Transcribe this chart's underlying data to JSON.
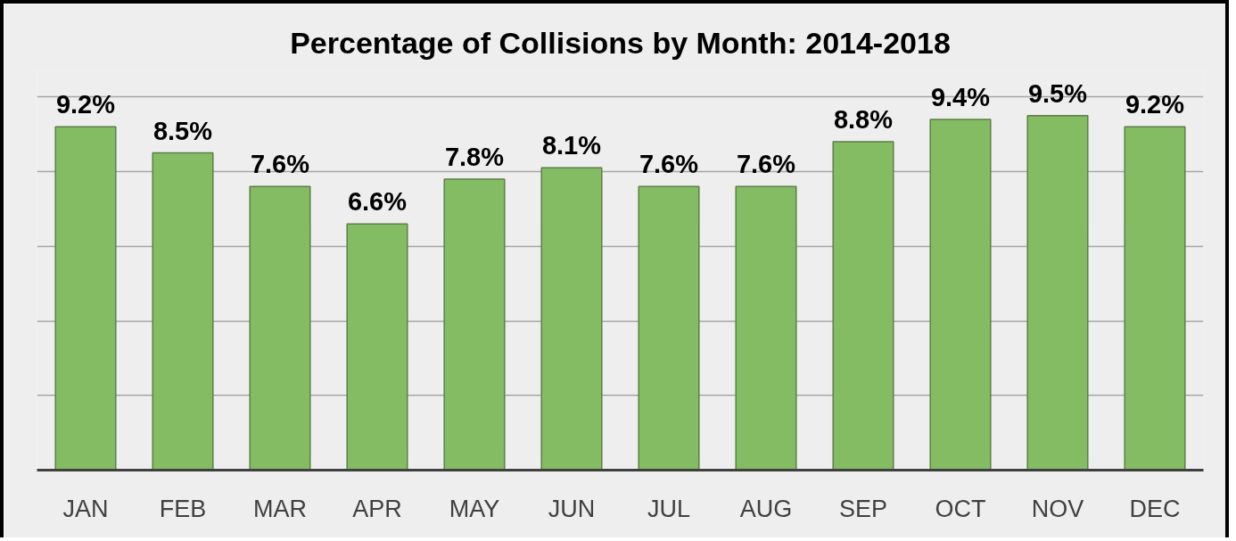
{
  "chart_data": {
    "type": "bar",
    "title": "Percentage of Collisions by Month: 2014-2018",
    "categories": [
      "JAN",
      "FEB",
      "MAR",
      "APR",
      "MAY",
      "JUN",
      "JUL",
      "AUG",
      "SEP",
      "OCT",
      "NOV",
      "DEC"
    ],
    "values": [
      9.2,
      8.5,
      7.6,
      6.6,
      7.8,
      8.1,
      7.6,
      7.6,
      8.8,
      9.4,
      9.5,
      9.2
    ],
    "value_labels": [
      "9.2%",
      "8.5%",
      "7.6%",
      "6.6%",
      "7.8%",
      "8.1%",
      "7.6%",
      "7.6%",
      "8.8%",
      "9.4%",
      "9.5%",
      "9.2%"
    ],
    "color": "#84bc64",
    "ylim": [
      0,
      10.7
    ],
    "yticks": [
      {
        "value": 2,
        "label": null
      },
      {
        "value": 4,
        "label": null
      },
      {
        "value": 6,
        "label": null
      },
      {
        "value": 8,
        "label": null
      },
      {
        "value": 10,
        "label": null
      }
    ],
    "grid": "y",
    "tick_labels": "x"
  }
}
